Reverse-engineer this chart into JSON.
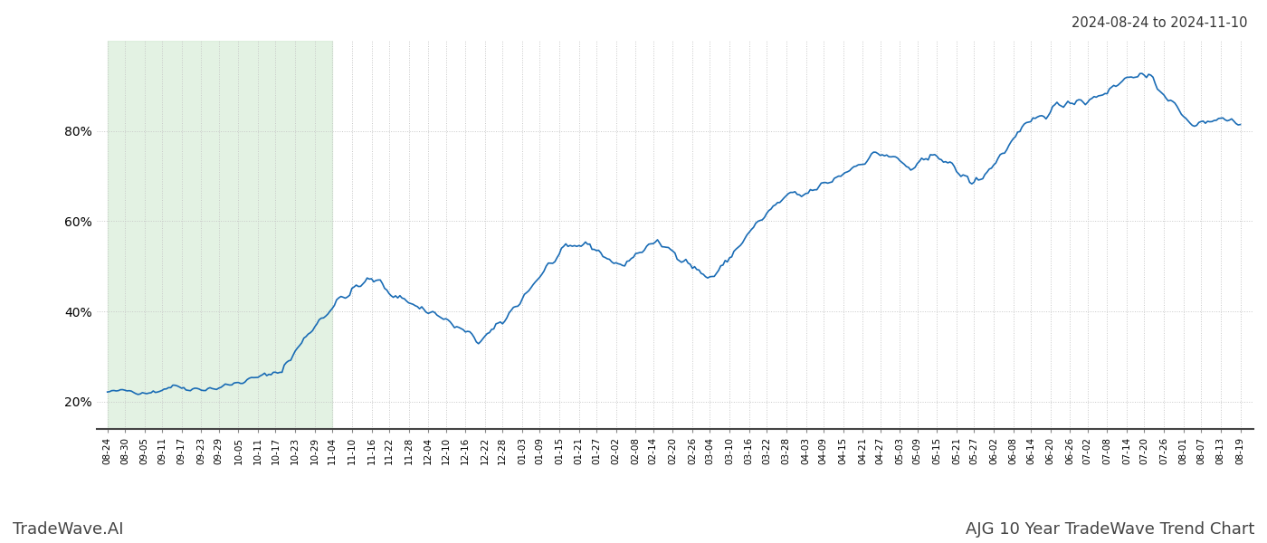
{
  "title_top_right": "2024-08-24 to 2024-11-10",
  "bottom_left": "TradeWave.AI",
  "bottom_right": "AJG 10 Year TradeWave Trend Chart",
  "y_ticks": [
    20,
    40,
    60,
    80
  ],
  "y_min": 14,
  "y_max": 100,
  "line_color": "#1a6cb5",
  "line_width": 1.2,
  "shade_color": "#d4ecd4",
  "shade_alpha": 0.65,
  "grid_color": "#c8c8c8",
  "grid_linestyle": ":",
  "background_color": "#ffffff",
  "x_labels": [
    "08-24",
    "08-30",
    "09-05",
    "09-11",
    "09-17",
    "09-23",
    "09-29",
    "10-05",
    "10-11",
    "10-17",
    "10-23",
    "10-29",
    "11-04",
    "11-10",
    "11-16",
    "11-22",
    "11-28",
    "12-04",
    "12-10",
    "12-16",
    "12-22",
    "12-28",
    "01-03",
    "01-09",
    "01-15",
    "01-21",
    "01-27",
    "02-02",
    "02-08",
    "02-14",
    "02-20",
    "02-26",
    "03-04",
    "03-10",
    "03-16",
    "03-22",
    "03-28",
    "04-03",
    "04-09",
    "04-15",
    "04-21",
    "04-27",
    "05-03",
    "05-09",
    "05-15",
    "05-21",
    "05-27",
    "06-02",
    "06-08",
    "06-14",
    "06-20",
    "06-26",
    "07-02",
    "07-08",
    "07-14",
    "07-20",
    "07-26",
    "08-01",
    "08-07",
    "08-13",
    "08-19"
  ],
  "shade_label_start": "08-24",
  "shade_label_end": "11-04"
}
